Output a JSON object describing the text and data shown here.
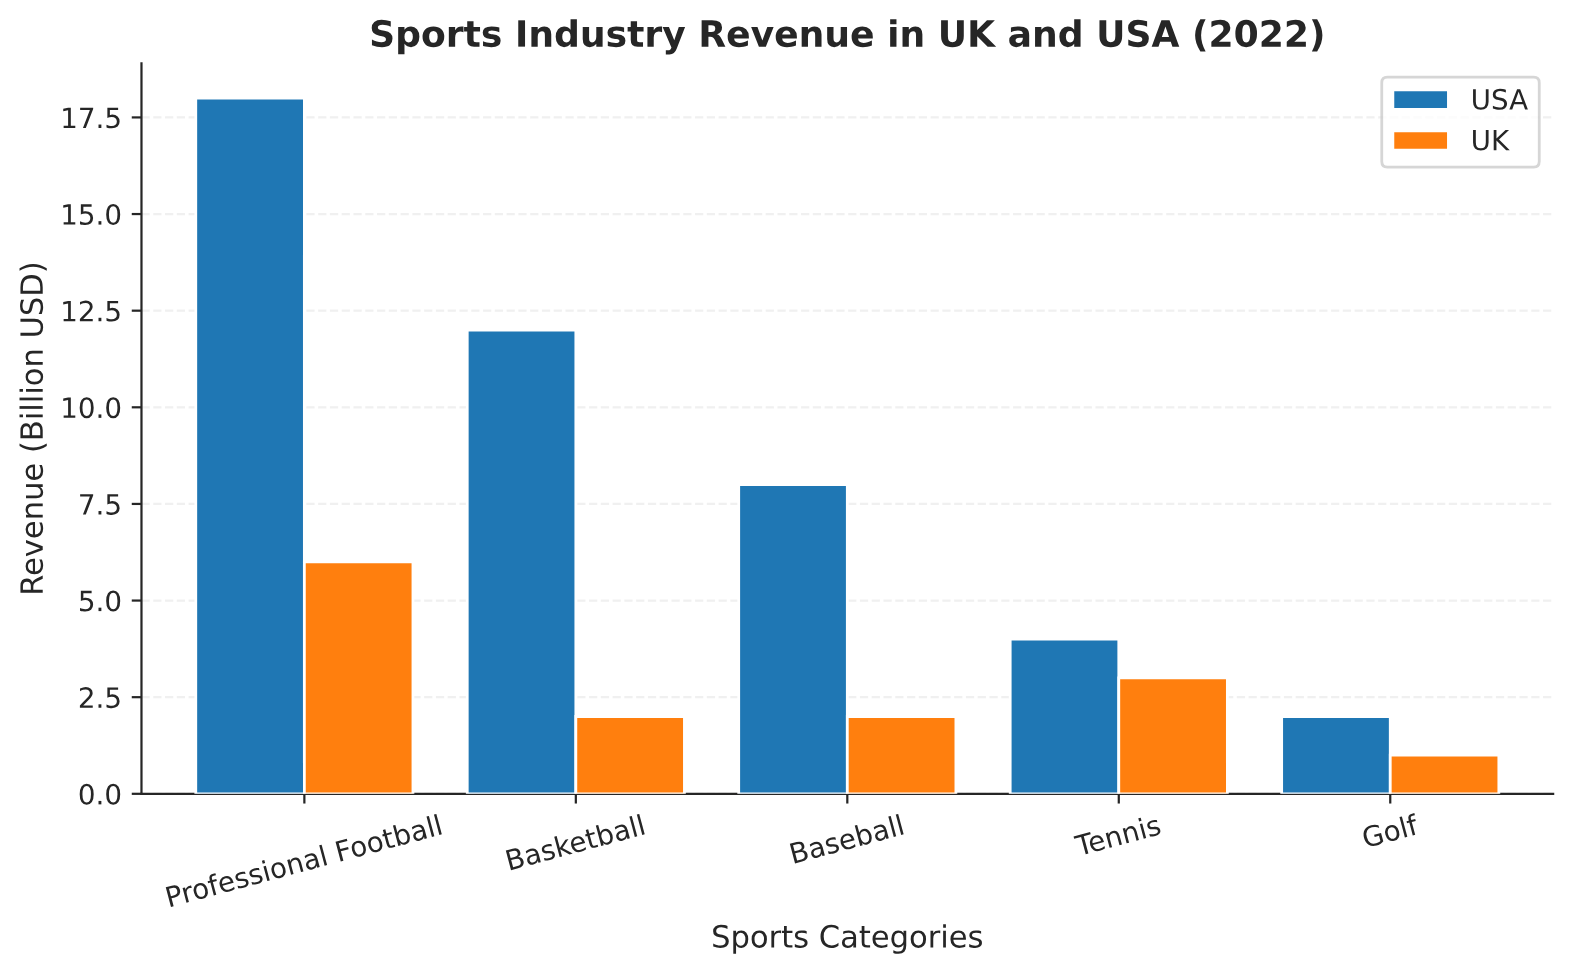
{
  "chart_data": {
    "type": "bar",
    "title": "Sports Industry Revenue in UK and USA (2022)",
    "xlabel": "Sports Categories",
    "ylabel": "Revenue (Billion USD)",
    "categories": [
      "Professional Football",
      "Basketball",
      "Baseball",
      "Tennis",
      "Golf"
    ],
    "series": [
      {
        "name": "USA",
        "color": "#1f77b4",
        "values": [
          18,
          12,
          8,
          4,
          2
        ]
      },
      {
        "name": "UK",
        "color": "#ff7f0e",
        "values": [
          6,
          2,
          2,
          3,
          1
        ]
      }
    ],
    "ylim": [
      0,
      18.9
    ],
    "yticks": [
      {
        "value": 0,
        "label": "0.0"
      },
      {
        "value": 2.5,
        "label": "2.5"
      },
      {
        "value": 5,
        "label": "5.0"
      },
      {
        "value": 7.5,
        "label": "7.5"
      },
      {
        "value": 10,
        "label": "10.0"
      },
      {
        "value": 12.5,
        "label": "12.5"
      },
      {
        "value": 15,
        "label": "15.0"
      },
      {
        "value": 17.5,
        "label": "17.5"
      }
    ],
    "grid": "y",
    "legend": "top right"
  }
}
